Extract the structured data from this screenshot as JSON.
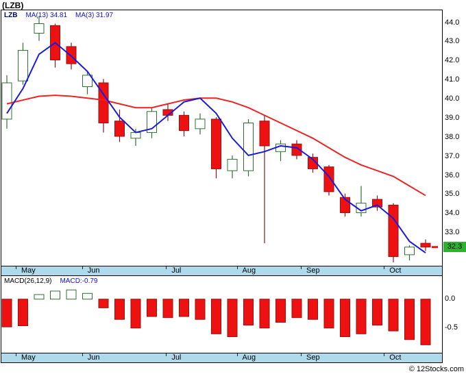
{
  "title": "(LZB)",
  "price_panel": {
    "legend": {
      "symbol": "LZB",
      "ma13": "MA(13) 34.81",
      "ma3": "MA(3)  31.97"
    },
    "axis_labels": [
      "44.0",
      "43.0",
      "42.0",
      "41.0",
      "40.0",
      "39.0",
      "38.0",
      "37.0",
      "36.0",
      "35.0",
      "34.0",
      "33.0"
    ],
    "current_price": "32.3"
  },
  "macd_panel": {
    "legend": {
      "name": "MACD(26,12,9)",
      "value": "MACD:-0.79"
    },
    "axis_labels": [
      "0.0",
      "-0.5"
    ]
  },
  "copyright": "© 12Stocks.com",
  "colors": {
    "up_fill": "#ffffff",
    "up_stroke": "#2f7030",
    "down_fill": "#ee1111",
    "down_stroke": "#991111",
    "wick_down": "#7a1f1f",
    "ma13": "#ee2222",
    "ma3": "#1a1add",
    "band": "#aedaec",
    "badge_bg": "#2eb22e"
  },
  "chart_data": {
    "type": "candlestick",
    "symbol": "LZB",
    "title": "(LZB) weekly price with MA(13)=34.81, MA(3)=31.97 and MACD(26,12,9)=-0.79",
    "months": [
      "May",
      "Jun",
      "Jul",
      "Aug",
      "Sep",
      "Oct"
    ],
    "price_ticks": [
      44.0,
      43.0,
      42.0,
      41.0,
      40.0,
      39.0,
      38.0,
      37.0,
      36.0,
      35.0,
      34.0,
      33.0
    ],
    "price_axis_range": [
      31.25,
      44.7
    ],
    "current_price": 32.3,
    "candles": [
      {
        "o": 39.0,
        "h": 41.3,
        "l": 38.5,
        "c": 40.9
      },
      {
        "o": 41.0,
        "h": 43.0,
        "l": 40.8,
        "c": 42.6
      },
      {
        "o": 43.5,
        "h": 44.4,
        "l": 43.1,
        "c": 44.0
      },
      {
        "o": 43.9,
        "h": 44.0,
        "l": 41.7,
        "c": 42.1
      },
      {
        "o": 42.8,
        "h": 43.0,
        "l": 41.6,
        "c": 41.9
      },
      {
        "o": 40.7,
        "h": 41.5,
        "l": 40.3,
        "c": 41.3
      },
      {
        "o": 40.9,
        "h": 41.1,
        "l": 38.3,
        "c": 38.8
      },
      {
        "o": 38.9,
        "h": 39.5,
        "l": 37.8,
        "c": 38.1
      },
      {
        "o": 38.0,
        "h": 38.5,
        "l": 37.6,
        "c": 38.3
      },
      {
        "o": 38.3,
        "h": 39.6,
        "l": 38.0,
        "c": 39.4
      },
      {
        "o": 39.5,
        "h": 39.8,
        "l": 38.9,
        "c": 39.2
      },
      {
        "o": 39.2,
        "h": 39.4,
        "l": 38.1,
        "c": 38.4
      },
      {
        "o": 38.5,
        "h": 39.3,
        "l": 38.2,
        "c": 39.0
      },
      {
        "o": 39.0,
        "h": 39.1,
        "l": 35.9,
        "c": 36.4
      },
      {
        "o": 36.3,
        "h": 37.1,
        "l": 35.9,
        "c": 36.9
      },
      {
        "o": 36.3,
        "h": 39.0,
        "l": 36.0,
        "c": 38.8
      },
      {
        "o": 38.9,
        "h": 39.2,
        "l": 32.5,
        "c": 37.6
      },
      {
        "o": 37.3,
        "h": 37.9,
        "l": 36.8,
        "c": 37.7
      },
      {
        "o": 37.7,
        "h": 37.9,
        "l": 36.9,
        "c": 37.1
      },
      {
        "o": 37.0,
        "h": 37.2,
        "l": 36.2,
        "c": 36.4
      },
      {
        "o": 36.5,
        "h": 36.6,
        "l": 35.0,
        "c": 35.2
      },
      {
        "o": 34.9,
        "h": 35.1,
        "l": 33.9,
        "c": 34.1
      },
      {
        "o": 34.1,
        "h": 35.5,
        "l": 33.9,
        "c": 34.6
      },
      {
        "o": 34.8,
        "h": 35.0,
        "l": 34.2,
        "c": 34.4
      },
      {
        "o": 34.5,
        "h": 34.6,
        "l": 31.5,
        "c": 31.8
      },
      {
        "o": 31.9,
        "h": 32.4,
        "l": 31.6,
        "c": 32.3
      },
      {
        "o": 32.5,
        "h": 32.7,
        "l": 32.1,
        "c": 32.3
      }
    ],
    "ma13": [
      39.8,
      40.0,
      40.2,
      40.25,
      40.2,
      40.1,
      40.0,
      39.8,
      39.6,
      39.6,
      39.8,
      40.0,
      40.1,
      40.1,
      39.9,
      39.6,
      39.2,
      38.8,
      38.4,
      38.0,
      37.5,
      37.0,
      36.6,
      36.3,
      36.0,
      35.5,
      35.0
    ],
    "ma3": [
      39.3,
      40.6,
      42.4,
      43.0,
      42.3,
      41.5,
      40.3,
      39.1,
      38.3,
      38.5,
      39.2,
      39.9,
      40.1,
      39.3,
      38.0,
      37.1,
      37.3,
      37.6,
      37.5,
      36.9,
      36.0,
      34.8,
      34.2,
      34.5,
      33.8,
      32.6,
      32.0
    ],
    "macd_ticks": [
      0.0,
      -0.5
    ],
    "macd_axis_range": [
      -0.94,
      0.4
    ],
    "macd_values": [
      -0.48,
      -0.46,
      0.08,
      0.14,
      0.16,
      0.1,
      -0.15,
      -0.35,
      -0.5,
      -0.3,
      -0.32,
      -0.3,
      -0.35,
      -0.6,
      -0.65,
      -0.45,
      -0.5,
      -0.4,
      -0.32,
      -0.35,
      -0.5,
      -0.65,
      -0.6,
      -0.45,
      -0.55,
      -0.7,
      -0.79
    ]
  }
}
